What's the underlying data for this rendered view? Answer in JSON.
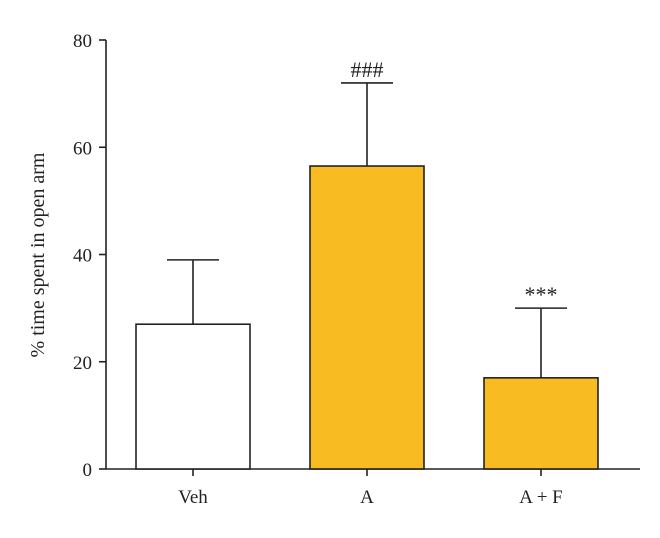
{
  "chart_data": {
    "type": "bar",
    "title": "",
    "xlabel": "",
    "ylabel": "% time spent in open arm",
    "ylim": [
      0,
      80
    ],
    "yticks": [
      0,
      20,
      40,
      60,
      80
    ],
    "grid": false,
    "categories": [
      "Veh",
      "A",
      "A + F"
    ],
    "values": [
      27,
      56.5,
      17
    ],
    "error_upper": [
      39,
      72,
      30
    ],
    "annotations": [
      "",
      "###",
      "***"
    ],
    "colors": [
      "#ffffff",
      "#f8bb22",
      "#f8bb22"
    ]
  }
}
